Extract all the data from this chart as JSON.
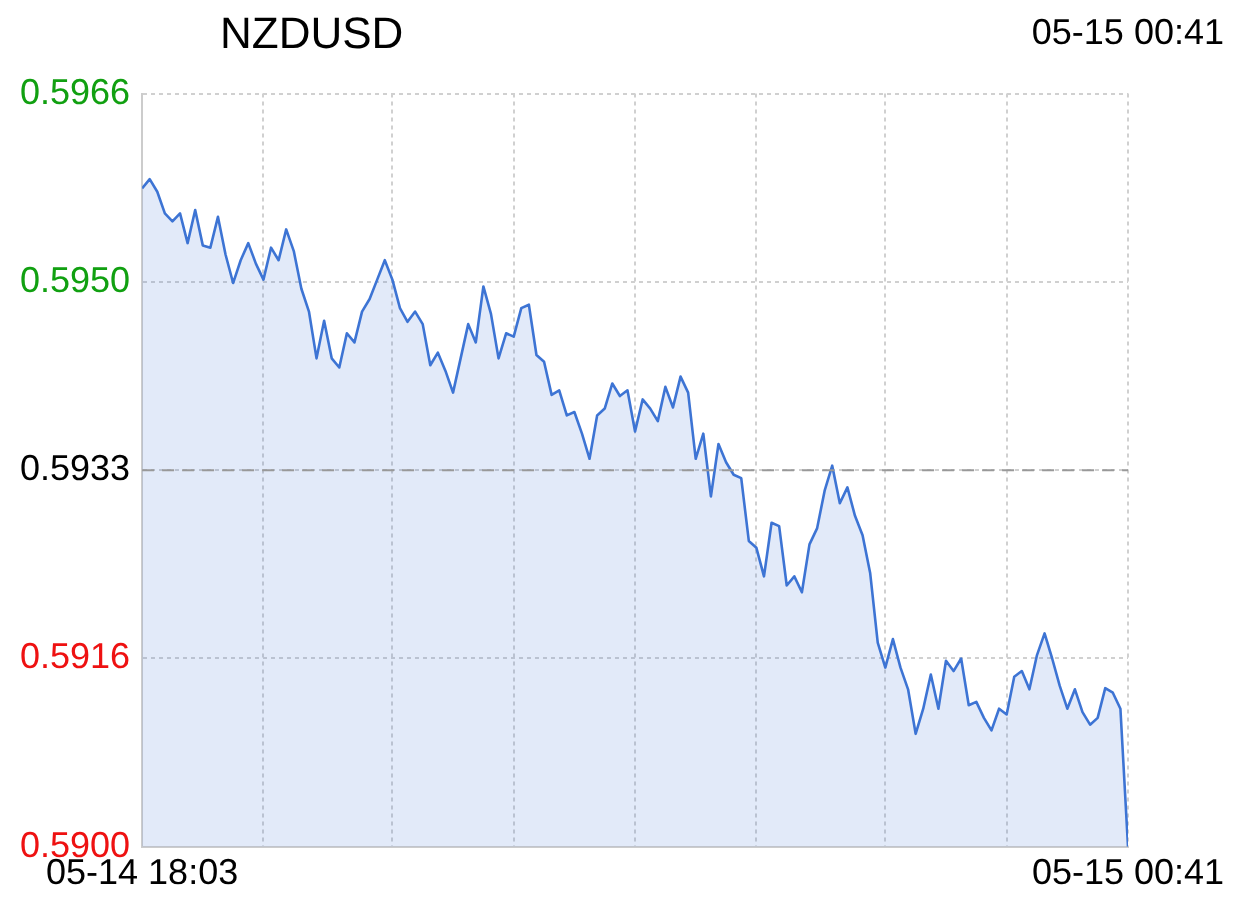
{
  "chart_data": {
    "type": "area",
    "title": "NZDUSD",
    "subtitle": "05-15 00:41",
    "categories": [
      "05-14 18:03",
      null,
      null,
      null,
      null,
      null,
      null,
      null,
      null,
      null,
      null,
      null,
      null,
      null,
      null,
      null,
      null,
      null,
      null,
      null,
      null,
      null,
      null,
      null,
      null,
      null,
      null,
      null,
      null,
      null,
      null,
      null,
      null,
      null,
      null,
      null,
      null,
      null,
      null,
      null,
      null,
      null,
      null,
      null,
      null,
      null,
      null,
      null,
      null,
      null,
      null,
      null,
      null,
      null,
      null,
      null,
      null,
      null,
      null,
      null,
      null,
      null,
      null,
      null,
      null,
      null,
      null,
      null,
      null,
      null,
      null,
      null,
      null,
      null,
      null,
      null,
      null,
      null,
      null,
      null,
      null,
      null,
      null,
      null,
      null,
      null,
      null,
      null,
      null,
      null,
      null,
      null,
      null,
      null,
      null,
      null,
      null,
      null,
      null,
      null,
      null,
      null,
      null,
      null,
      null,
      null,
      null,
      null,
      null,
      null,
      null,
      null,
      null,
      null,
      null,
      null,
      null,
      null,
      null,
      null,
      null,
      null,
      null,
      null,
      null,
      null,
      null,
      null,
      null,
      null,
      "05-15 00:41"
    ],
    "series": [
      {
        "color": "#3d74d4",
        "values": [
          0.59577,
          0.59585,
          0.59574,
          0.59555,
          0.59548,
          0.59555,
          0.59529,
          0.59558,
          0.59527,
          0.59525,
          0.59552,
          0.59519,
          0.59494,
          0.59514,
          0.59529,
          0.59511,
          0.59497,
          0.59525,
          0.59514,
          0.59541,
          0.59522,
          0.59489,
          0.59469,
          0.59428,
          0.59461,
          0.59428,
          0.5942,
          0.5945,
          0.59442,
          0.59469,
          0.5948,
          0.59497,
          0.59514,
          0.59497,
          0.59472,
          0.5946,
          0.59469,
          0.59458,
          0.59422,
          0.59433,
          0.59417,
          0.59398,
          0.59428,
          0.59458,
          0.59442,
          0.59491,
          0.59467,
          0.59428,
          0.5945,
          0.59447,
          0.59472,
          0.59475,
          0.59431,
          0.59425,
          0.59396,
          0.594,
          0.59378,
          0.59381,
          0.59362,
          0.5934,
          0.59378,
          0.59384,
          0.59406,
          0.59395,
          0.594,
          0.59364,
          0.59392,
          0.59384,
          0.59373,
          0.59403,
          0.59385,
          0.59412,
          0.59398,
          0.5934,
          0.59362,
          0.59307,
          0.59353,
          0.59337,
          0.59326,
          0.59323,
          0.59268,
          0.59262,
          0.59237,
          0.59284,
          0.59281,
          0.59229,
          0.59237,
          0.59223,
          0.59265,
          0.59279,
          0.59312,
          0.59334,
          0.59301,
          0.59315,
          0.5929,
          0.59273,
          0.5924,
          0.59179,
          0.59157,
          0.59182,
          0.59157,
          0.59138,
          0.59099,
          0.59121,
          0.59151,
          0.59121,
          0.59163,
          0.59154,
          0.59165,
          0.59124,
          0.59127,
          0.59113,
          0.59102,
          0.59121,
          0.59116,
          0.59149,
          0.59154,
          0.59138,
          0.59168,
          0.59187,
          0.59165,
          0.59141,
          0.59121,
          0.59138,
          0.59118,
          0.59107,
          0.59113,
          0.59139,
          0.59135,
          0.59121,
          0.59
        ]
      }
    ],
    "ylim": [
      0.59,
      0.5966
    ],
    "yticks": [
      {
        "value": 0.59,
        "label": "0.5900"
      },
      {
        "value": 0.59165,
        "label": "0.5916"
      },
      {
        "value": 0.5933,
        "label": "0.5933"
      },
      {
        "value": 0.59495,
        "label": "0.5950"
      },
      {
        "value": 0.5966,
        "label": "0.5966"
      }
    ],
    "ref_lines": [
      {
        "axis": "y",
        "value": 0.5933,
        "color": "#999999",
        "line_style": "dashed"
      }
    ],
    "grid": true,
    "legend": false,
    "marker": "none",
    "line_style": "solid"
  }
}
